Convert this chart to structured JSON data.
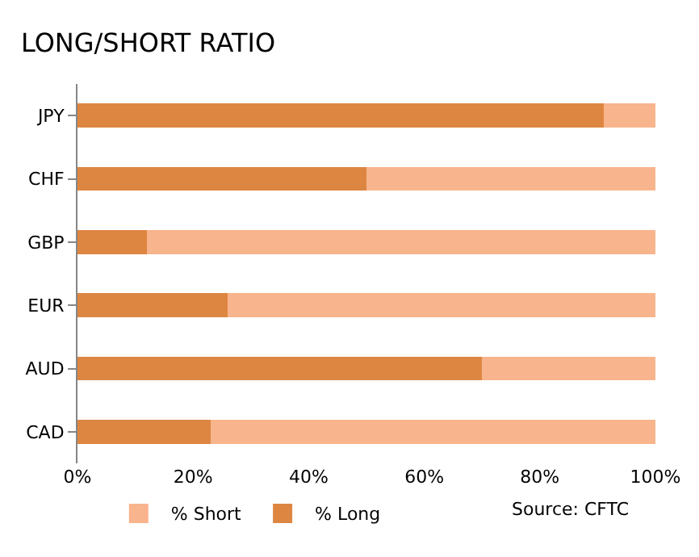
{
  "chart_data": {
    "type": "bar",
    "orientation": "horizontal",
    "stacked": true,
    "title": "LONG/SHORT RATIO",
    "categories": [
      "JPY",
      "CHF",
      "GBP",
      "EUR",
      "AUD",
      "CAD"
    ],
    "series": [
      {
        "name": "% Long",
        "color": "#dd8642",
        "values": [
          91,
          50,
          12,
          26,
          70,
          23
        ]
      },
      {
        "name": "% Short",
        "color": "#f8b48c",
        "values": [
          9,
          50,
          88,
          74,
          30,
          77
        ]
      }
    ],
    "xlim": [
      0,
      100
    ],
    "xticks": [
      {
        "value": 0,
        "label": "0%"
      },
      {
        "value": 20,
        "label": "20%"
      },
      {
        "value": 40,
        "label": "40%"
      },
      {
        "value": 60,
        "label": "60%"
      },
      {
        "value": 80,
        "label": "80%"
      },
      {
        "value": 100,
        "label": "100%"
      }
    ],
    "grid": false,
    "legend": "bottom",
    "annotations": [
      "Source: CFTC"
    ]
  }
}
